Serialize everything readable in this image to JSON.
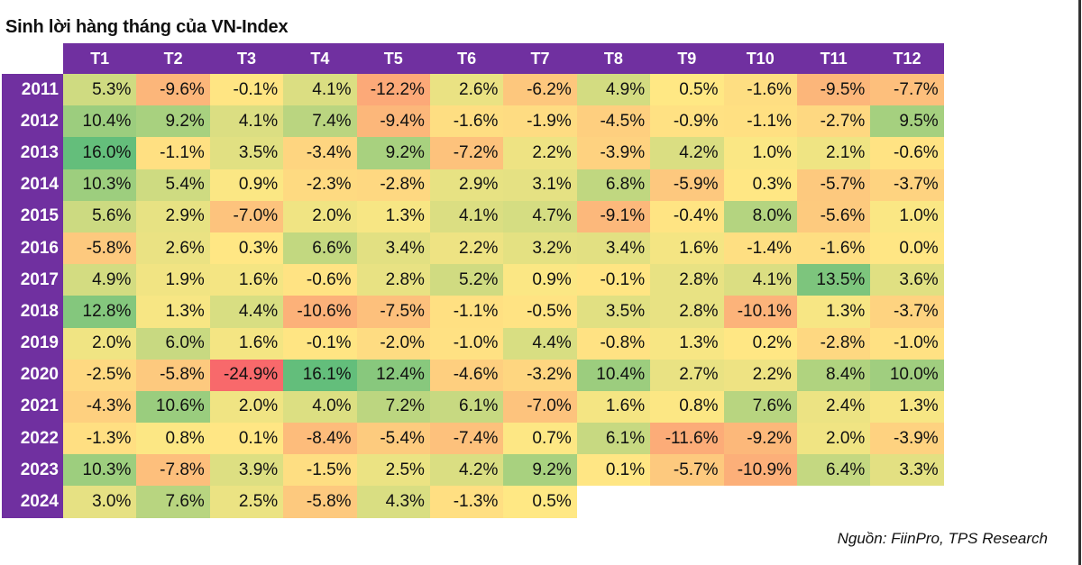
{
  "chart_data": {
    "type": "heatmap",
    "title": "Sinh lời hàng tháng của VN-Index",
    "columns": [
      "T1",
      "T2",
      "T3",
      "T4",
      "T5",
      "T6",
      "T7",
      "T8",
      "T9",
      "T10",
      "T11",
      "T12"
    ],
    "rows": [
      {
        "year": "2011",
        "values": [
          "5.3%",
          "-9.6%",
          "-0.1%",
          "4.1%",
          "-12.2%",
          "2.6%",
          "-6.2%",
          "4.9%",
          "0.5%",
          "-1.6%",
          "-9.5%",
          "-7.7%"
        ]
      },
      {
        "year": "2012",
        "values": [
          "10.4%",
          "9.2%",
          "4.1%",
          "7.4%",
          "-9.4%",
          "-1.6%",
          "-1.9%",
          "-4.5%",
          "-0.9%",
          "-1.1%",
          "-2.7%",
          "9.5%"
        ]
      },
      {
        "year": "2013",
        "values": [
          "16.0%",
          "-1.1%",
          "3.5%",
          "-3.4%",
          "9.2%",
          "-7.2%",
          "2.2%",
          "-3.9%",
          "4.2%",
          "1.0%",
          "2.1%",
          "-0.6%"
        ]
      },
      {
        "year": "2014",
        "values": [
          "10.3%",
          "5.4%",
          "0.9%",
          "-2.3%",
          "-2.8%",
          "2.9%",
          "3.1%",
          "6.8%",
          "-5.9%",
          "0.3%",
          "-5.7%",
          "-3.7%"
        ]
      },
      {
        "year": "2015",
        "values": [
          "5.6%",
          "2.9%",
          "-7.0%",
          "2.0%",
          "1.3%",
          "4.1%",
          "4.7%",
          "-9.1%",
          "-0.4%",
          "8.0%",
          "-5.6%",
          "1.0%"
        ]
      },
      {
        "year": "2016",
        "values": [
          "-5.8%",
          "2.6%",
          "0.3%",
          "6.6%",
          "3.4%",
          "2.2%",
          "3.2%",
          "3.4%",
          "1.6%",
          "-1.4%",
          "-1.6%",
          "0.0%"
        ]
      },
      {
        "year": "2017",
        "values": [
          "4.9%",
          "1.9%",
          "1.6%",
          "-0.6%",
          "2.8%",
          "5.2%",
          "0.9%",
          "-0.1%",
          "2.8%",
          "4.1%",
          "13.5%",
          "3.6%"
        ]
      },
      {
        "year": "2018",
        "values": [
          "12.8%",
          "1.3%",
          "4.4%",
          "-10.6%",
          "-7.5%",
          "-1.1%",
          "-0.5%",
          "3.5%",
          "2.8%",
          "-10.1%",
          "1.3%",
          "-3.7%"
        ]
      },
      {
        "year": "2019",
        "values": [
          "2.0%",
          "6.0%",
          "1.6%",
          "-0.1%",
          "-2.0%",
          "-1.0%",
          "4.4%",
          "-0.8%",
          "1.3%",
          "0.2%",
          "-2.8%",
          "-1.0%"
        ]
      },
      {
        "year": "2020",
        "values": [
          "-2.5%",
          "-5.8%",
          "-24.9%",
          "16.1%",
          "12.4%",
          "-4.6%",
          "-3.2%",
          "10.4%",
          "2.7%",
          "2.2%",
          "8.4%",
          "10.0%"
        ]
      },
      {
        "year": "2021",
        "values": [
          "-4.3%",
          "10.6%",
          "2.0%",
          "4.0%",
          "7.2%",
          "6.1%",
          "-7.0%",
          "1.6%",
          "0.8%",
          "7.6%",
          "2.4%",
          "1.3%"
        ]
      },
      {
        "year": "2022",
        "values": [
          "-1.3%",
          "0.8%",
          "0.1%",
          "-8.4%",
          "-5.4%",
          "-7.4%",
          "0.7%",
          "6.1%",
          "-11.6%",
          "-9.2%",
          "2.0%",
          "-3.9%"
        ]
      },
      {
        "year": "2023",
        "values": [
          "10.3%",
          "-7.8%",
          "3.9%",
          "-1.5%",
          "2.5%",
          "4.2%",
          "9.2%",
          "0.1%",
          "-5.7%",
          "-10.9%",
          "6.4%",
          "3.3%"
        ]
      },
      {
        "year": "2024",
        "values": [
          "3.0%",
          "7.6%",
          "2.5%",
          "-5.8%",
          "4.3%",
          "-1.3%",
          "0.5%"
        ]
      }
    ],
    "color_scale": {
      "min_value": -24.9,
      "mid_value": 0.5,
      "max_value": 16.1,
      "min_color": "#F8696B",
      "mid_color": "#FFE884",
      "max_color": "#63BE7B"
    },
    "header_color": "#7030A0"
  },
  "source": "Nguồn: FiinPro, TPS Research"
}
